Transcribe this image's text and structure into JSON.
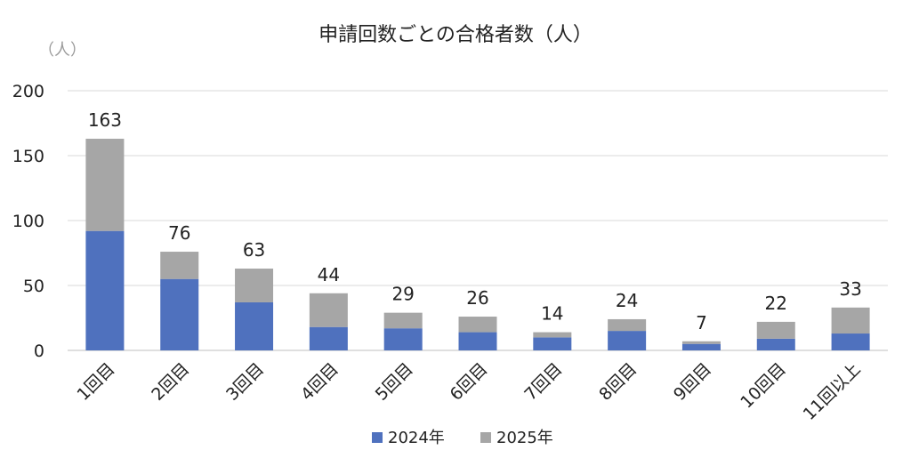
{
  "chart_data": {
    "type": "bar",
    "stacked": true,
    "title": "申請回数ごとの合格者数（人）",
    "unit_label": "（人）",
    "categories": [
      "1回目",
      "2回目",
      "3回目",
      "4回目",
      "5回目",
      "6回目",
      "7回目",
      "8回目",
      "9回目",
      "10回目",
      "11回以上"
    ],
    "series": [
      {
        "name": "2024年",
        "color": "#4f71be",
        "values": [
          92,
          55,
          37,
          18,
          17,
          14,
          10,
          15,
          5,
          9,
          13
        ]
      },
      {
        "name": "2025年",
        "color": "#a6a6a6",
        "values": [
          71,
          21,
          26,
          26,
          12,
          12,
          4,
          9,
          2,
          13,
          20
        ]
      }
    ],
    "totals": [
      163,
      76,
      63,
      44,
      29,
      26,
      14,
      24,
      7,
      22,
      33
    ],
    "ylim": [
      0,
      200
    ],
    "yticks": [
      0,
      50,
      100,
      150,
      200
    ],
    "grid": true,
    "legend_position": "bottom"
  }
}
